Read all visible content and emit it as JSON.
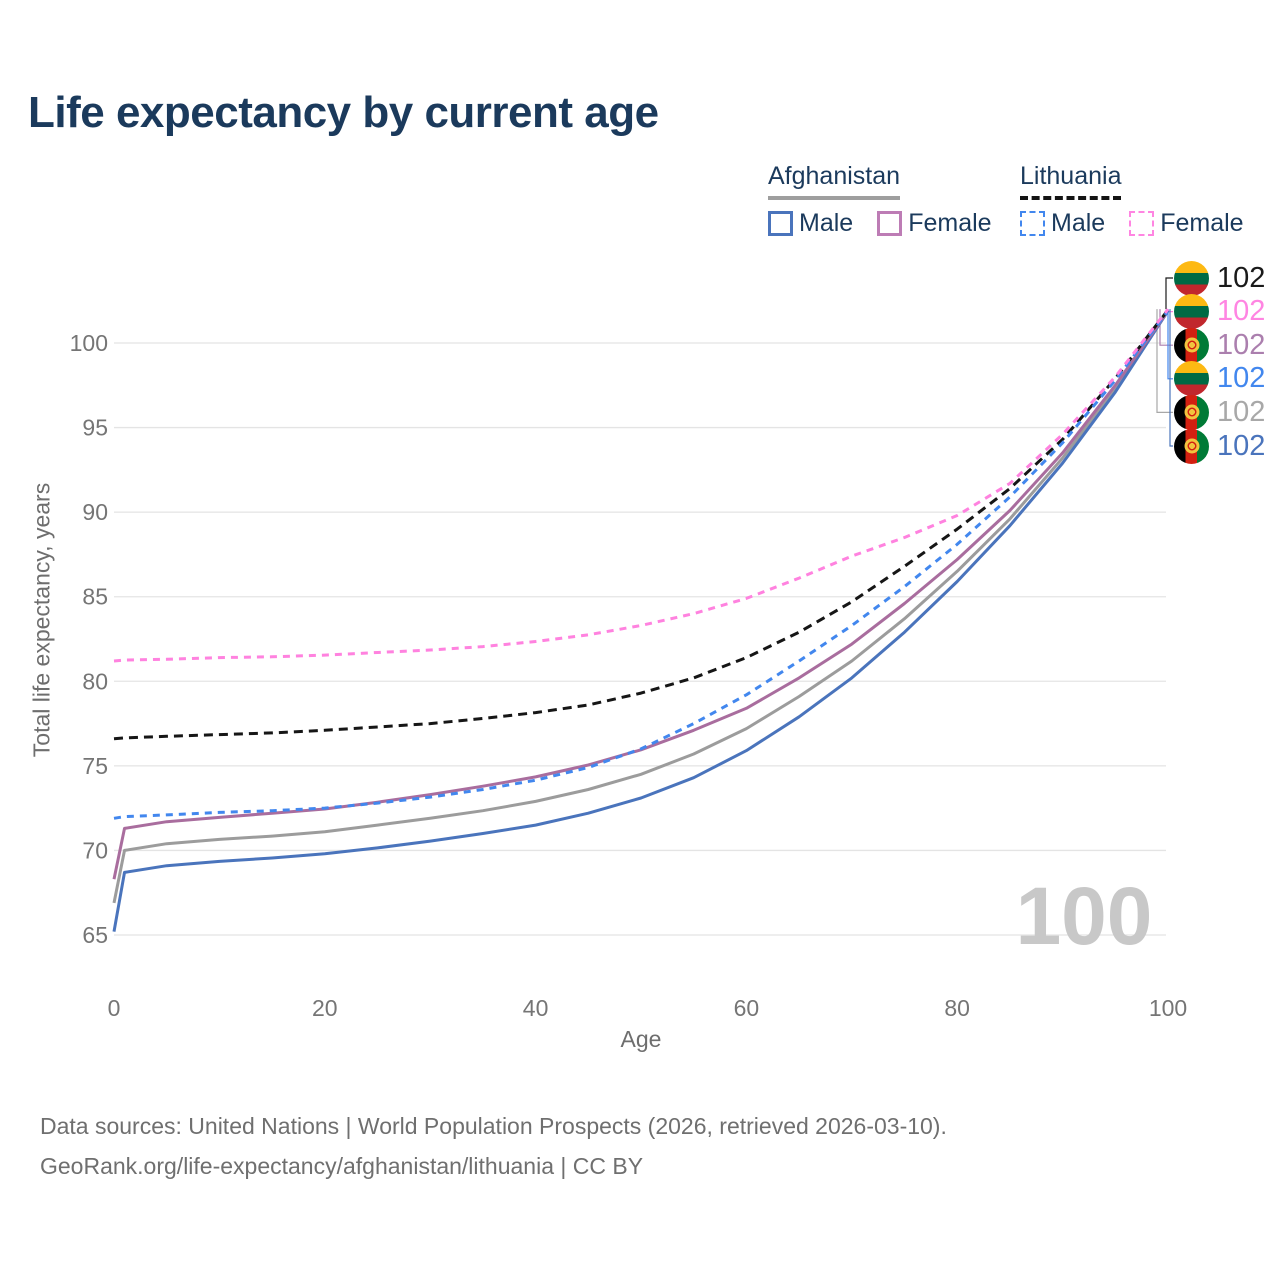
{
  "title": "Life expectancy by current age",
  "legend": {
    "groups": [
      {
        "name": "Afghanistan",
        "line_style": "solid",
        "underline_color": "#9e9e9e",
        "items": [
          {
            "label": "Male",
            "color": "#4a74bc",
            "dashed": false
          },
          {
            "label": "Female",
            "color": "#bd7cb5",
            "dashed": false
          }
        ]
      },
      {
        "name": "Lithuania",
        "line_style": "dashed",
        "underline_color": "#141414",
        "items": [
          {
            "label": "Male",
            "color": "#4287ee",
            "dashed": true
          },
          {
            "label": "Female",
            "color": "#ff85e2",
            "dashed": true
          }
        ]
      }
    ]
  },
  "y_axis": {
    "title": "Total life expectancy, years",
    "ticks": [
      65,
      70,
      75,
      80,
      85,
      90,
      95,
      100
    ]
  },
  "x_axis": {
    "title": "Age",
    "ticks": [
      0,
      20,
      40,
      60,
      80,
      100
    ]
  },
  "age_indicator": "100",
  "chart_data": {
    "type": "line",
    "title": "Life expectancy by current age",
    "xlabel": "Age",
    "ylabel": "Total life expectancy, years",
    "xlim": [
      0,
      100
    ],
    "ylim": [
      65,
      100
    ],
    "grid": "horizontal",
    "legend_position": "top-right",
    "x": [
      0,
      1,
      5,
      10,
      15,
      20,
      25,
      30,
      35,
      40,
      45,
      50,
      55,
      60,
      65,
      70,
      75,
      80,
      85,
      90,
      95,
      100
    ],
    "series": [
      {
        "name": "Afghanistan both sexes",
        "country": "Afghanistan",
        "sex": "both",
        "color": "#9c9c9c",
        "dash": null,
        "values": [
          66.9,
          70.0,
          70.4,
          70.65,
          70.85,
          71.1,
          71.5,
          71.9,
          72.35,
          72.9,
          73.6,
          74.5,
          75.7,
          77.2,
          79.1,
          81.2,
          83.7,
          86.5,
          89.6,
          93.2,
          97.3,
          101.9
        ]
      },
      {
        "name": "Afghanistan male",
        "country": "Afghanistan",
        "sex": "male",
        "color": "#4a74bc",
        "dash": null,
        "values": [
          65.2,
          68.7,
          69.1,
          69.35,
          69.55,
          69.8,
          70.15,
          70.55,
          71.0,
          71.5,
          72.2,
          73.1,
          74.3,
          75.9,
          77.9,
          80.2,
          82.9,
          85.9,
          89.2,
          92.9,
          97.1,
          101.9
        ]
      },
      {
        "name": "Afghanistan female",
        "country": "Afghanistan",
        "sex": "female",
        "color": "#a96d9e",
        "dash": null,
        "values": [
          68.3,
          71.3,
          71.7,
          71.95,
          72.2,
          72.45,
          72.85,
          73.3,
          73.8,
          74.35,
          75.05,
          75.95,
          77.1,
          78.4,
          80.2,
          82.2,
          84.6,
          87.2,
          90.1,
          93.5,
          97.5,
          101.9
        ]
      },
      {
        "name": "Lithuania both sexes",
        "country": "Lithuania",
        "sex": "both",
        "color": "#161616",
        "dash": "9 6",
        "values": [
          76.6,
          76.65,
          76.75,
          76.85,
          76.95,
          77.1,
          77.3,
          77.5,
          77.8,
          78.15,
          78.6,
          79.3,
          80.2,
          81.4,
          82.9,
          84.7,
          86.8,
          89.0,
          91.4,
          94.3,
          97.9,
          101.95
        ]
      },
      {
        "name": "Lithuania male",
        "country": "Lithuania",
        "sex": "male",
        "color": "#4287ee",
        "dash": "7 6",
        "values": [
          71.9,
          72.0,
          72.1,
          72.25,
          72.35,
          72.5,
          72.8,
          73.15,
          73.6,
          74.15,
          74.9,
          76.0,
          77.5,
          79.2,
          81.2,
          83.3,
          85.6,
          88.1,
          90.9,
          94.1,
          97.8,
          101.9
        ]
      },
      {
        "name": "Lithuania female",
        "country": "Lithuania",
        "sex": "female",
        "color": "#ff82df",
        "dash": "7 6",
        "values": [
          81.2,
          81.25,
          81.3,
          81.4,
          81.45,
          81.55,
          81.7,
          81.85,
          82.05,
          82.35,
          82.75,
          83.3,
          84.0,
          84.9,
          86.1,
          87.4,
          88.5,
          89.8,
          91.7,
          94.6,
          98.0,
          102.0
        ]
      }
    ],
    "end_labels": [
      {
        "series": "Lithuania both sexes",
        "flag": "lt",
        "value": "102",
        "color": "#1a1a1a"
      },
      {
        "series": "Lithuania female",
        "flag": "lt",
        "value": "102",
        "color": "#ff85e2"
      },
      {
        "series": "Afghanistan female",
        "flag": "af",
        "value": "102",
        "color": "#ab7fae"
      },
      {
        "series": "Lithuania male",
        "flag": "lt",
        "value": "102",
        "color": "#4287ee"
      },
      {
        "series": "Afghanistan both sexes",
        "flag": "af",
        "value": "102",
        "color": "#a8a8a8"
      },
      {
        "series": "Afghanistan male",
        "flag": "af",
        "value": "102",
        "color": "#4a74bc"
      }
    ]
  },
  "flag_colors": {
    "lt": [
      "#fdb913",
      "#006a44",
      "#c1272d"
    ],
    "af": [
      "#000000",
      "#d32011",
      "#007a36"
    ]
  },
  "footer": {
    "line1": "Data sources: United Nations | World Population Prospects (2026, retrieved 2026-03-10).",
    "line2": "GeoRank.org/life-expectancy/afghanistan/lithuania | CC BY"
  }
}
